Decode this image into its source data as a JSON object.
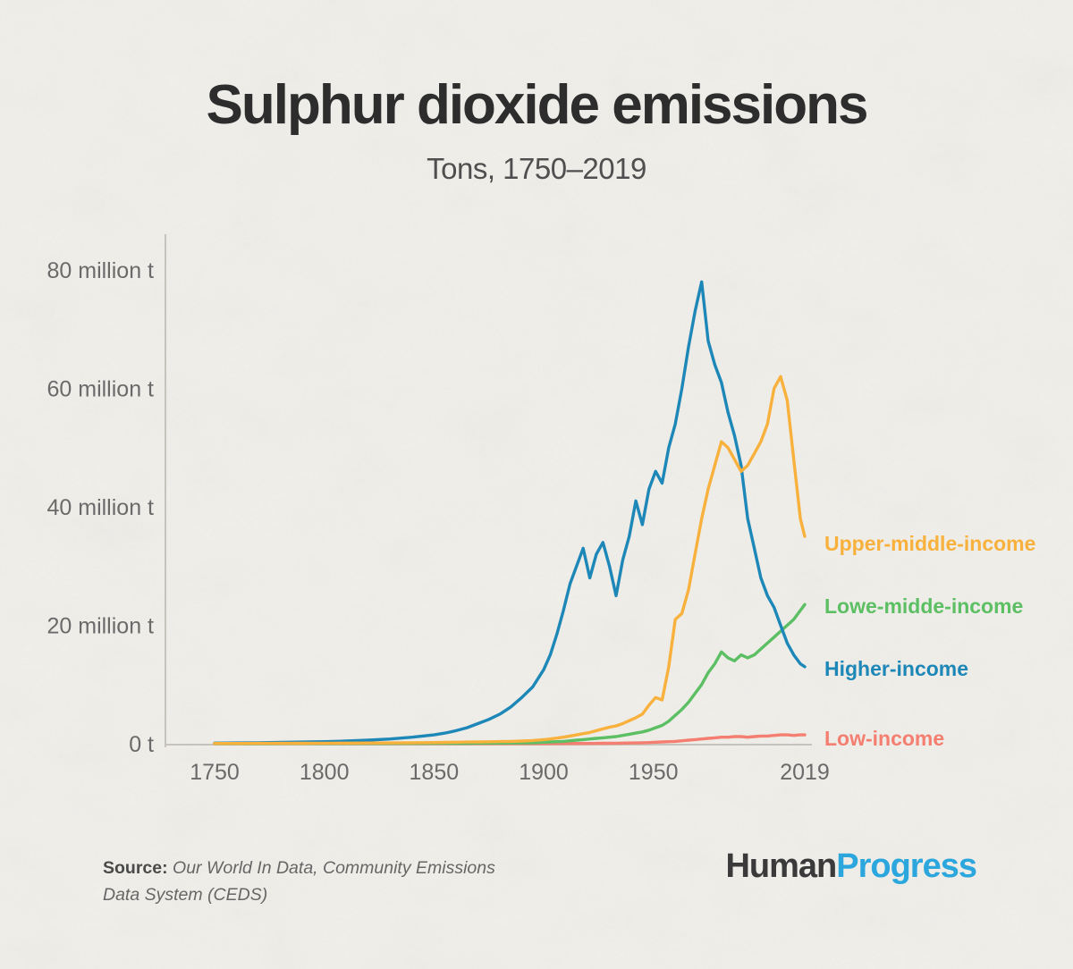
{
  "page": {
    "title": "Sulphur dioxide emissions",
    "subtitle": "Tons, 1750–2019",
    "source": {
      "label": "Source:",
      "line1": "Our World In Data,  Community Emissions",
      "line2": "Data System (CEDS)"
    },
    "brand": {
      "part1": "Human",
      "part2": "Progress"
    }
  },
  "colors": {
    "background": "#f1efea",
    "title_text": "#2d2d2d",
    "subtitle_text": "#4f4f4f",
    "axis_line": "#c6c3bd",
    "axis_text": "#6a6a6a",
    "brand_dark": "#3a3a3a",
    "brand_blue": "#2ba7de"
  },
  "chart_data": {
    "type": "line",
    "title": "Sulphur dioxide emissions",
    "subtitle": "Tons, 1750–2019",
    "xlabel": "",
    "ylabel": "",
    "xlim": [
      1750,
      2019
    ],
    "ylim": [
      0,
      80
    ],
    "grid": false,
    "legend_position": "right-edge-labels",
    "x_ticks": [
      {
        "value": 1750,
        "label": "1750"
      },
      {
        "value": 1800,
        "label": "1800"
      },
      {
        "value": 1850,
        "label": "1850"
      },
      {
        "value": 1900,
        "label": "1900"
      },
      {
        "value": 1950,
        "label": "1950"
      },
      {
        "value": 2019,
        "label": "2019"
      }
    ],
    "y_ticks": [
      {
        "value": 0,
        "label": "0 t"
      },
      {
        "value": 20,
        "label": "20 million t"
      },
      {
        "value": 40,
        "label": "40 million t"
      },
      {
        "value": 60,
        "label": "60 million t"
      },
      {
        "value": 80,
        "label": "80 million t"
      }
    ],
    "x": [
      1750,
      1760,
      1770,
      1780,
      1790,
      1800,
      1810,
      1820,
      1830,
      1840,
      1850,
      1855,
      1860,
      1865,
      1870,
      1875,
      1880,
      1885,
      1890,
      1895,
      1900,
      1903,
      1906,
      1909,
      1912,
      1915,
      1918,
      1921,
      1924,
      1927,
      1930,
      1933,
      1936,
      1939,
      1942,
      1945,
      1948,
      1951,
      1954,
      1957,
      1960,
      1963,
      1966,
      1969,
      1972,
      1975,
      1978,
      1981,
      1984,
      1987,
      1990,
      1993,
      1996,
      1999,
      2002,
      2005,
      2008,
      2011,
      2014,
      2017,
      2019
    ],
    "series": [
      {
        "name": "Upper-middle-income",
        "color": "#f8b13c",
        "values": [
          0.05,
          0.05,
          0.06,
          0.07,
          0.08,
          0.09,
          0.1,
          0.12,
          0.14,
          0.17,
          0.2,
          0.22,
          0.25,
          0.28,
          0.3,
          0.33,
          0.36,
          0.4,
          0.45,
          0.55,
          0.7,
          0.8,
          0.95,
          1.1,
          1.3,
          1.5,
          1.7,
          1.9,
          2.2,
          2.5,
          2.8,
          3.0,
          3.4,
          3.9,
          4.4,
          5.0,
          6.5,
          7.8,
          7.4,
          13,
          21,
          22,
          26,
          32,
          38,
          43,
          47,
          51,
          50,
          48,
          46,
          47,
          49,
          51,
          54,
          60,
          62,
          58,
          48,
          38,
          35
        ]
      },
      {
        "name": "Lowe-midde-income",
        "color": "#5cbf63",
        "values": [
          0.02,
          0.02,
          0.02,
          0.03,
          0.03,
          0.03,
          0.04,
          0.04,
          0.05,
          0.05,
          0.06,
          0.06,
          0.07,
          0.08,
          0.09,
          0.1,
          0.11,
          0.12,
          0.14,
          0.16,
          0.25,
          0.3,
          0.35,
          0.4,
          0.5,
          0.6,
          0.7,
          0.8,
          0.9,
          1.0,
          1.1,
          1.2,
          1.4,
          1.6,
          1.8,
          2.0,
          2.3,
          2.7,
          3.1,
          3.8,
          4.8,
          5.8,
          7.0,
          8.5,
          10,
          12,
          13.5,
          15.5,
          14.5,
          14,
          15,
          14.5,
          15,
          16,
          17,
          18,
          19,
          20,
          21,
          22.5,
          23.5
        ]
      },
      {
        "name": "Higher-income",
        "color": "#1d87b8",
        "values": [
          0.1,
          0.13,
          0.17,
          0.22,
          0.28,
          0.35,
          0.45,
          0.6,
          0.8,
          1.1,
          1.5,
          1.8,
          2.2,
          2.7,
          3.4,
          4.1,
          5.0,
          6.2,
          7.8,
          9.6,
          12.5,
          15,
          18.5,
          22.5,
          27,
          30,
          33,
          28,
          32,
          34,
          30,
          25,
          31,
          35,
          41,
          37,
          43,
          46,
          44,
          50,
          54,
          60,
          67,
          73,
          78,
          68,
          64,
          61,
          56,
          52,
          47,
          38,
          33,
          28,
          25,
          23,
          20,
          17,
          15,
          13.5,
          13
        ]
      },
      {
        "name": "Low-income",
        "color": "#f47e70",
        "values": [
          0.01,
          0.01,
          0.01,
          0.01,
          0.01,
          0.01,
          0.01,
          0.01,
          0.01,
          0.01,
          0.01,
          0.01,
          0.01,
          0.01,
          0.01,
          0.01,
          0.01,
          0.01,
          0.01,
          0.01,
          0.02,
          0.02,
          0.03,
          0.03,
          0.04,
          0.04,
          0.05,
          0.05,
          0.06,
          0.07,
          0.08,
          0.09,
          0.1,
          0.12,
          0.14,
          0.16,
          0.2,
          0.25,
          0.3,
          0.35,
          0.4,
          0.5,
          0.6,
          0.7,
          0.8,
          0.9,
          1.0,
          1.1,
          1.1,
          1.2,
          1.2,
          1.1,
          1.2,
          1.3,
          1.3,
          1.4,
          1.5,
          1.5,
          1.4,
          1.5,
          1.5
        ]
      }
    ]
  }
}
